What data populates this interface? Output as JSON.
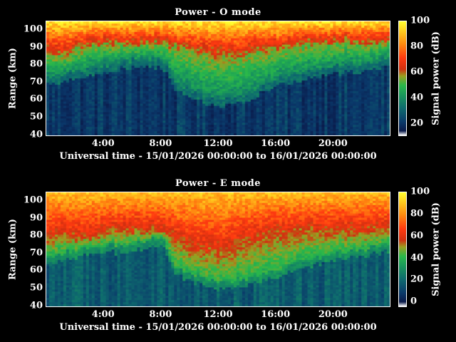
{
  "chart_data": [
    {
      "type": "heatmap",
      "title": "Power - O mode",
      "xlabel": "Universal time - 15/01/2026 00:00:00 to 16/01/2026 00:00:00",
      "ylabel": "Range (km)",
      "colorbar_label": "Signal power (dB)",
      "x_range_hours": [
        0,
        24
      ],
      "ylim": [
        39,
        105
      ],
      "x_ticks": [
        "4:00",
        "8:00",
        "12:00",
        "16:00",
        "20:00"
      ],
      "x_tick_hours": [
        4,
        8,
        12,
        16,
        20
      ],
      "y_ticks": [
        40,
        50,
        60,
        70,
        80,
        90,
        100
      ],
      "colorbar_ticks": [
        20,
        40,
        60,
        80,
        100
      ],
      "colorbar_range": [
        10,
        100
      ],
      "cmap": "white-blue-green-red-yellow",
      "boundary_profile": {
        "hours": [
          0,
          1,
          2,
          3,
          4,
          5,
          6,
          7,
          8,
          9,
          10,
          11,
          12,
          13,
          14,
          15,
          16,
          17,
          18,
          19,
          20,
          21,
          22,
          23,
          24
        ],
        "lower_edge_km": [
          74,
          75,
          76,
          78,
          80,
          82,
          83,
          84,
          83,
          70,
          66,
          62,
          60,
          61,
          64,
          68,
          72,
          74,
          76,
          78,
          79,
          80,
          80,
          82,
          84
        ],
        "strong_echo_km": [
          88,
          86,
          88,
          90,
          92,
          92,
          92,
          92,
          92,
          90,
          88,
          86,
          84,
          84,
          86,
          88,
          88,
          90,
          92,
          92,
          92,
          94,
          92,
          92,
          94
        ]
      },
      "background_power_db": 22,
      "peak_power_db": 95
    },
    {
      "type": "heatmap",
      "title": "Power - E mode",
      "xlabel": "Universal time - 15/01/2026 00:00:00 to 16/01/2026 00:00:00",
      "ylabel": "Range (km)",
      "colorbar_label": "Signal power (dB)",
      "x_range_hours": [
        0,
        24
      ],
      "ylim": [
        39,
        105
      ],
      "x_ticks": [
        "4:00",
        "8:00",
        "12:00",
        "16:00",
        "20:00"
      ],
      "x_tick_hours": [
        4,
        8,
        12,
        16,
        20
      ],
      "y_ticks": [
        40,
        50,
        60,
        70,
        80,
        90,
        100
      ],
      "colorbar_ticks": [
        0,
        20,
        40,
        60,
        80,
        100
      ],
      "colorbar_range": [
        -5,
        100
      ],
      "cmap": "white-blue-green-red-yellow",
      "boundary_profile": {
        "hours": [
          0,
          1,
          2,
          3,
          4,
          5,
          6,
          7,
          8,
          9,
          10,
          11,
          12,
          13,
          14,
          15,
          16,
          17,
          18,
          19,
          20,
          21,
          22,
          23,
          24
        ],
        "lower_edge_km": [
          68,
          70,
          72,
          74,
          75,
          75,
          76,
          78,
          80,
          62,
          58,
          55,
          54,
          55,
          56,
          58,
          60,
          64,
          66,
          68,
          70,
          72,
          72,
          74,
          76
        ],
        "strong_echo_km": [
          80,
          82,
          80,
          80,
          82,
          84,
          84,
          84,
          84,
          78,
          74,
          72,
          72,
          74,
          78,
          80,
          82,
          82,
          84,
          84,
          84,
          84,
          84,
          84,
          86
        ]
      },
      "background_power_db": 18,
      "peak_power_db": 88
    }
  ]
}
